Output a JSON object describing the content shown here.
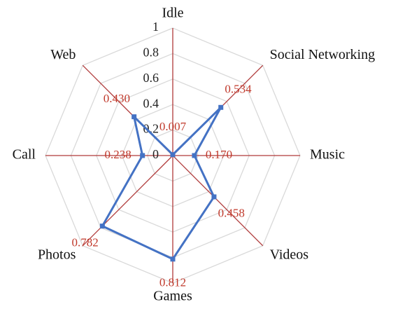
{
  "chart_data": {
    "type": "radar",
    "categories": [
      "Idle",
      "Social Networking",
      "Music",
      "Videos",
      "Games",
      "Photos",
      "Call",
      "Web"
    ],
    "series": [
      {
        "color": "#4472c4",
        "values": [
          0.007,
          0.534,
          0.17,
          0.458,
          0.812,
          0.782,
          0.238,
          0.43
        ],
        "value_labels": [
          "0.007",
          "0.534",
          "0.170",
          "0.458",
          "0.812",
          "0.782",
          "0.238",
          "0.430"
        ]
      }
    ],
    "ylim": [
      0,
      1
    ],
    "yticks": [
      0,
      0.2,
      0.4,
      0.6,
      0.8,
      1
    ],
    "grid": true,
    "grid_color": "#d9d9d9",
    "axis_color": "#b03a3a",
    "label_color": "#c0392b"
  }
}
